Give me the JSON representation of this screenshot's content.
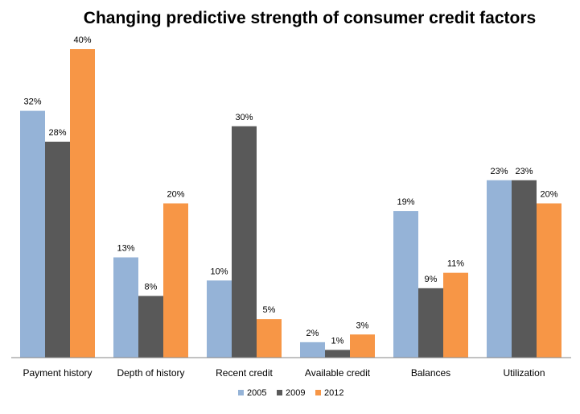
{
  "chart_data": {
    "type": "bar",
    "title": "Changing predictive strength of consumer credit factors",
    "xlabel": "",
    "ylabel": "",
    "ylim": [
      0,
      40
    ],
    "grid": false,
    "legend_position": "bottom",
    "categories": [
      "Payment history",
      "Depth of history",
      "Recent credit",
      "Available credit",
      "Balances",
      "Utilization"
    ],
    "series": [
      {
        "name": "2005",
        "color": "#95B3D7",
        "values": [
          32,
          13,
          10,
          2,
          19,
          23
        ],
        "labels": [
          "32%",
          "13%",
          "10%",
          "2%",
          "19%",
          "23%"
        ]
      },
      {
        "name": "2009",
        "color": "#595959",
        "values": [
          28,
          8,
          30,
          1,
          9,
          23
        ],
        "labels": [
          "28%",
          "8%",
          "30%",
          "1%",
          "9%",
          "23%"
        ]
      },
      {
        "name": "2012",
        "color": "#F79646",
        "values": [
          40,
          20,
          5,
          3,
          11,
          20
        ],
        "labels": [
          "40%",
          "20%",
          "5%",
          "3%",
          "11%",
          "20%"
        ]
      }
    ]
  }
}
